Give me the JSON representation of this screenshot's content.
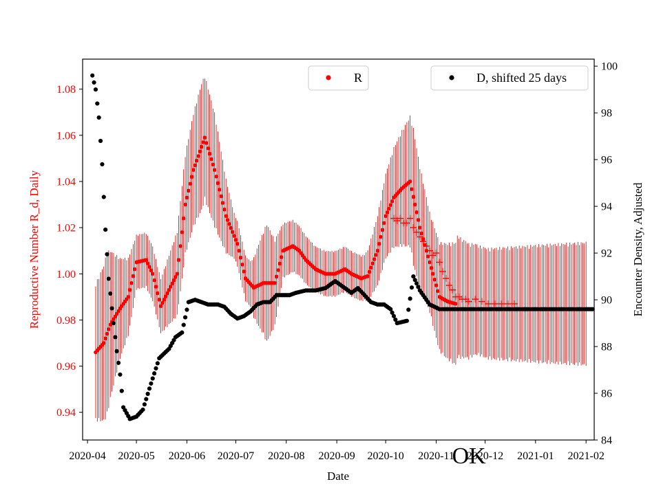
{
  "chart_data": {
    "type": "scatter",
    "xlabel": "Date",
    "ylabel_left": "Reproductive Number R_d, Daily",
    "ylabel_right": "Encounter Density, Adjusted",
    "watermark": "OK",
    "x_ticks": [
      "2020-04",
      "2020-05",
      "2020-06",
      "2020-07",
      "2020-08",
      "2020-09",
      "2020-10",
      "2020-11",
      "2020-12",
      "2021-01",
      "2021-02"
    ],
    "x_range_days": [
      -3,
      311
    ],
    "y_left": {
      "range": [
        0.928,
        1.093
      ],
      "ticks": [
        0.94,
        0.96,
        0.98,
        1.0,
        1.02,
        1.04,
        1.06,
        1.08
      ],
      "tick_labels": [
        "0.94",
        "0.96",
        "0.98",
        "1.00",
        "1.02",
        "1.04",
        "1.06",
        "1.08"
      ],
      "color": "#ff0000"
    },
    "y_right": {
      "range": [
        84,
        100.3
      ],
      "ticks": [
        84,
        86,
        88,
        90,
        92,
        94,
        96,
        98,
        100
      ],
      "tick_labels": [
        "84",
        "86",
        "88",
        "90",
        "92",
        "94",
        "96",
        "98",
        "100"
      ]
    },
    "legend": [
      {
        "label": "R",
        "color": "#ff0000",
        "marker": "dot",
        "position": "top-center"
      },
      {
        "label": "D, shifted 25 days",
        "color": "#000000",
        "marker": "dot",
        "position": "top-right"
      }
    ],
    "series": [
      {
        "name": "R",
        "axis": "left",
        "color": "#ff0000",
        "marker": "dot",
        "errorbars": true,
        "x_day_range": [
          5,
          226
        ],
        "anchors_day": [
          5,
          10,
          14,
          20,
          25,
          30,
          36,
          40,
          45,
          55,
          60,
          65,
          72,
          78,
          85,
          92,
          97,
          102,
          108,
          115,
          120,
          126,
          130,
          134,
          140,
          146,
          152,
          158,
          162,
          168,
          172,
          178,
          183,
          188,
          193,
          198,
          204,
          210,
          216,
          221,
          226
        ],
        "anchors_value": [
          0.966,
          0.97,
          0.978,
          0.985,
          0.99,
          1.005,
          1.006,
          1.0,
          0.986,
          1.0,
          1.03,
          1.045,
          1.059,
          1.045,
          1.025,
          1.013,
          0.998,
          0.994,
          0.996,
          0.996,
          1.01,
          1.012,
          1.01,
          1.006,
          1.002,
          1.0,
          1.0,
          1.002,
          1.0,
          0.998,
          0.999,
          1.01,
          1.025,
          1.033,
          1.037,
          1.04,
          1.02,
          1.005,
          0.99,
          0.988,
          0.987
        ],
        "error_halfwidth": {
          "anchors_day": [
            5,
            12,
            20,
            30,
            45,
            60,
            70,
            78,
            90,
            100,
            110,
            120,
            140,
            160,
            170,
            185,
            200,
            210,
            226
          ],
          "anchors_value": [
            0.03,
            0.036,
            0.022,
            0.012,
            0.012,
            0.022,
            0.028,
            0.025,
            0.01,
            0.01,
            0.026,
            0.012,
            0.01,
            0.01,
            0.01,
            0.02,
            0.03,
            0.022,
            0.027
          ]
        }
      },
      {
        "name": "R (plus markers)",
        "axis": "left",
        "color": "#ff0000",
        "marker": "plus",
        "points": [
          [
            188,
            1.024
          ],
          [
            190,
            1.023
          ],
          [
            192,
            1.024
          ],
          [
            194,
            1.022
          ],
          [
            196,
            1.022
          ],
          [
            198,
            1.024
          ],
          [
            200,
            1.02
          ],
          [
            202,
            1.018
          ],
          [
            204,
            1.016
          ],
          [
            206,
            1.014
          ],
          [
            208,
            1.012
          ],
          [
            210,
            1.01
          ],
          [
            212,
            1.008
          ],
          [
            214,
            1.009
          ],
          [
            216,
            1.005
          ],
          [
            218,
            1.001
          ],
          [
            220,
            0.998
          ],
          [
            222,
            0.995
          ],
          [
            224,
            0.993
          ],
          [
            226,
            0.99
          ],
          [
            228,
            0.99
          ],
          [
            230,
            0.989
          ],
          [
            232,
            0.989
          ],
          [
            234,
            0.988
          ],
          [
            238,
            0.989
          ],
          [
            242,
            0.988
          ],
          [
            246,
            0.987
          ],
          [
            250,
            0.987
          ],
          [
            254,
            0.987
          ],
          [
            258,
            0.987
          ],
          [
            262,
            0.987
          ]
        ]
      },
      {
        "name": "D, shifted 25 days",
        "axis": "right",
        "color": "#000000",
        "marker": "dot",
        "x_day_range": [
          3,
          310
        ],
        "anchors_day": [
          3,
          5,
          7,
          9,
          11,
          13,
          16,
          18,
          20,
          22,
          26,
          30,
          34,
          38,
          44,
          50,
          54,
          58,
          62,
          66,
          70,
          74,
          80,
          84,
          88,
          92,
          96,
          100,
          104,
          108,
          112,
          116,
          120,
          124,
          128,
          134,
          140,
          146,
          152,
          158,
          162,
          166,
          170,
          174,
          178,
          182,
          186,
          190,
          196,
          200,
          204,
          210,
          216,
          220,
          224,
          228,
          232,
          236,
          240,
          244,
          248,
          256,
          266,
          276,
          286,
          296,
          306,
          310
        ],
        "anchors_value": [
          99.6,
          99.0,
          97.8,
          95.8,
          93.0,
          90.9,
          89.0,
          87.8,
          86.8,
          85.4,
          84.9,
          85.0,
          85.3,
          86.2,
          87.5,
          87.9,
          88.4,
          88.6,
          89.9,
          90.0,
          89.9,
          89.8,
          89.8,
          89.7,
          89.4,
          89.2,
          89.3,
          89.5,
          89.8,
          89.9,
          89.9,
          90.2,
          90.2,
          90.2,
          90.3,
          90.4,
          90.4,
          90.5,
          90.8,
          90.5,
          90.3,
          90.5,
          90.2,
          89.9,
          89.8,
          89.8,
          89.6,
          89.0,
          89.1,
          91.0,
          90.4,
          89.8,
          89.6,
          89.6,
          89.6,
          89.6,
          89.6,
          89.6,
          89.6,
          89.6,
          89.6,
          89.6,
          89.6,
          89.6,
          89.6,
          89.6,
          89.6,
          89.6
        ]
      }
    ]
  }
}
